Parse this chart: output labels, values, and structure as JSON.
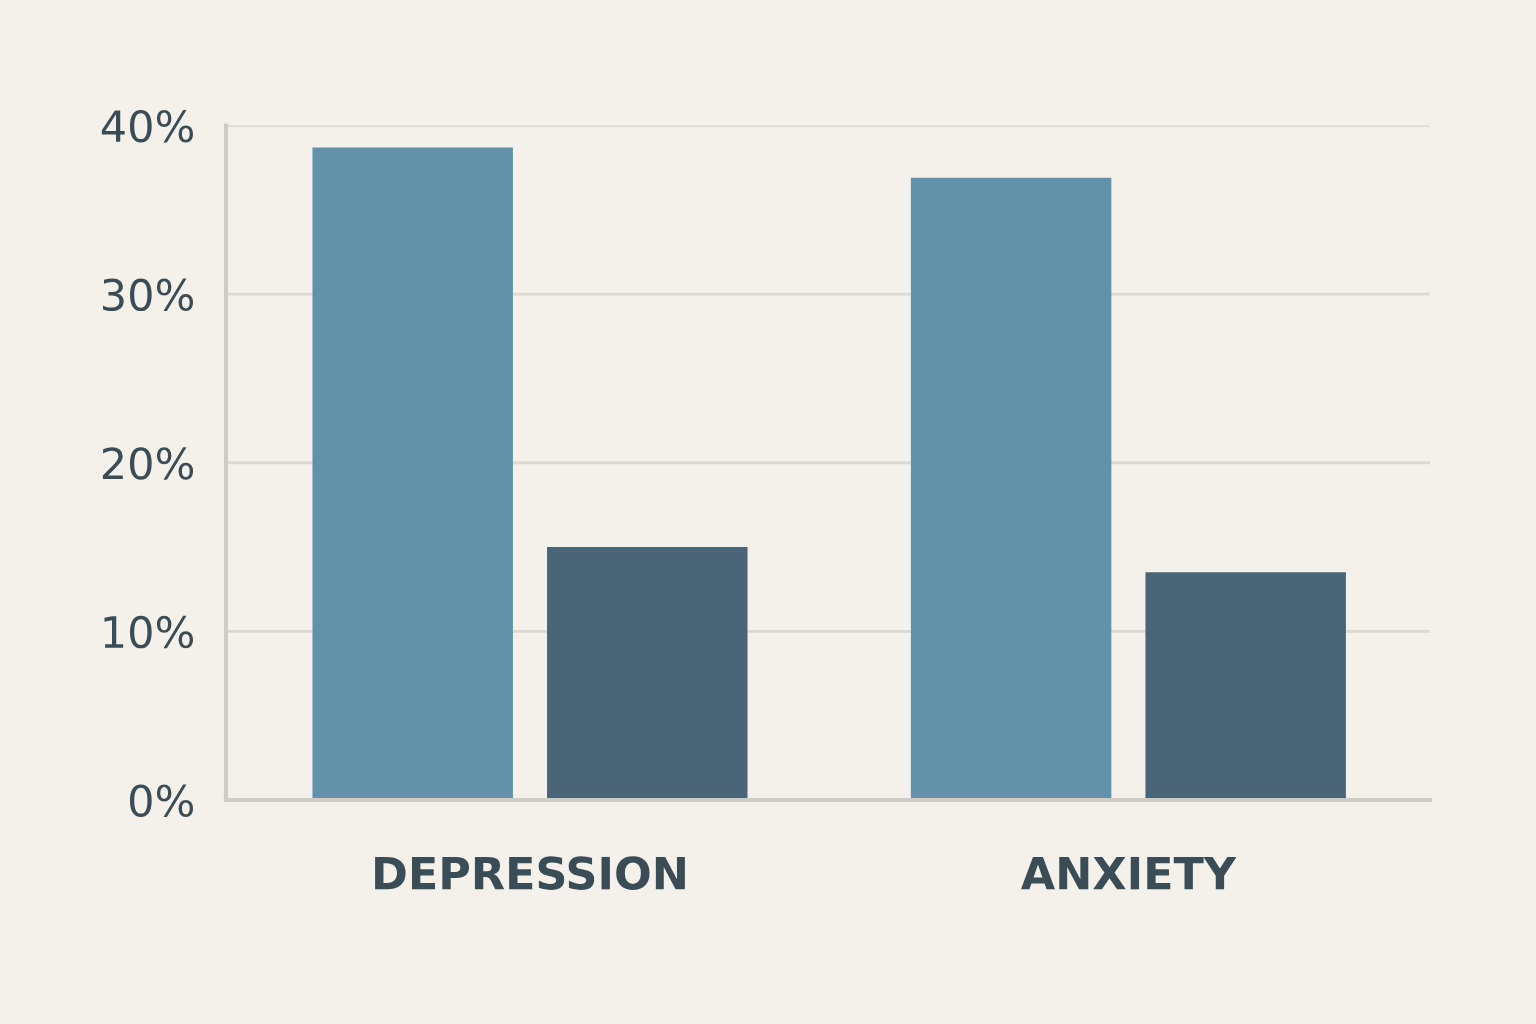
{
  "chart_data": {
    "type": "bar",
    "categories": [
      "DEPRESSION",
      "ANXIETY"
    ],
    "series": [
      {
        "color": "#6192a9",
        "values": [
          38.7,
          36.9
        ]
      },
      {
        "color": "#4a6578",
        "values": [
          15,
          13.5
        ]
      }
    ],
    "ylim": [
      0,
      40
    ],
    "yticks": [
      {
        "value": 0,
        "label": "0%"
      },
      {
        "value": 10,
        "label": "10%"
      },
      {
        "value": 20,
        "label": "20%"
      },
      {
        "value": 30,
        "label": "30%"
      },
      {
        "value": 40,
        "label": "40%"
      }
    ],
    "grid": "y"
  }
}
